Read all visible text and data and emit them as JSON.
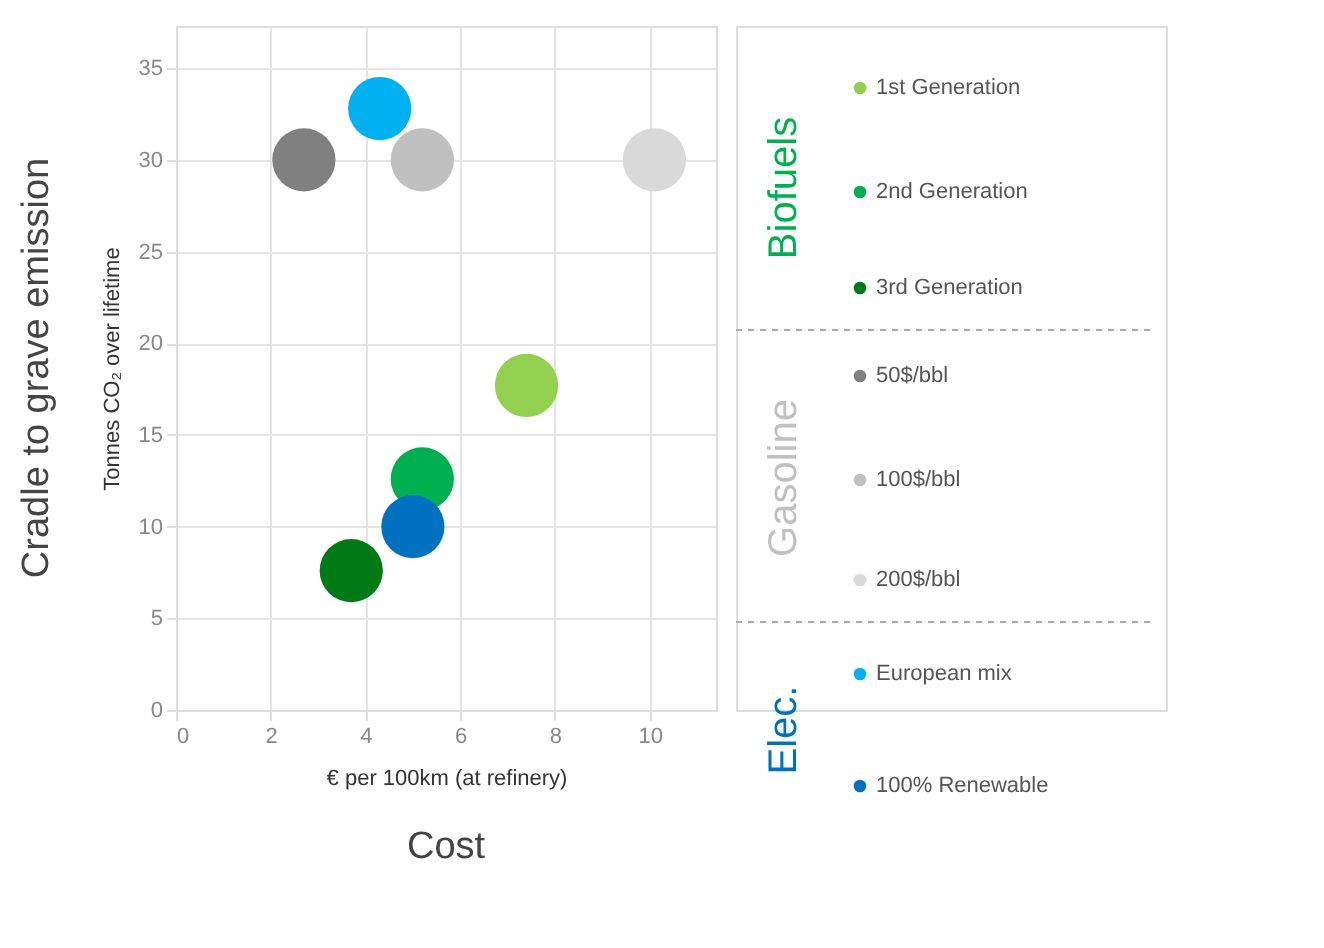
{
  "chart_data": {
    "type": "scatter",
    "xlabel": "€ per 100km (at refinery)",
    "ylabel": "Tonnes CO₂ over lifetime",
    "annotations": [
      "Cost",
      "Cradle to grave emission",
      "Biofuels",
      "Gasoline",
      "Elec."
    ],
    "xlim": [
      0,
      11.4
    ],
    "xticks": [
      0,
      2,
      4,
      6,
      8,
      10
    ],
    "ylim": [
      0,
      37.3
    ],
    "yticks": [
      0,
      5,
      10,
      15,
      20,
      25,
      30,
      35
    ],
    "grid": true,
    "legend": "right",
    "marker": "circle",
    "series": [
      {
        "name": "1st Generation",
        "color": "#92d050",
        "x": [
          7.4
        ],
        "values": [
          17.7
        ]
      },
      {
        "name": "2nd Generation",
        "color": "#00b050",
        "x": [
          5.2
        ],
        "values": [
          12.6
        ]
      },
      {
        "name": "3rd Generation",
        "color": "#007a16",
        "x": [
          3.7
        ],
        "values": [
          7.6
        ]
      },
      {
        "name": "50$/bbl",
        "color": "#808080",
        "x": [
          2.7
        ],
        "values": [
          30.0
        ]
      },
      {
        "name": "100$/bbl",
        "color": "#c0c0c0",
        "x": [
          5.2
        ],
        "values": [
          30.0
        ]
      },
      {
        "name": "200$/bbl",
        "color": "#d9d9d9",
        "x": [
          10.1
        ],
        "values": [
          30.0
        ]
      },
      {
        "name": "European mix",
        "color": "#00b0f0",
        "x": [
          4.3
        ],
        "values": [
          32.8
        ]
      },
      {
        "name": "100% Renewable",
        "color": "#0070c0",
        "x": [
          5.0
        ],
        "values": [
          10.0
        ]
      }
    ]
  }
}
